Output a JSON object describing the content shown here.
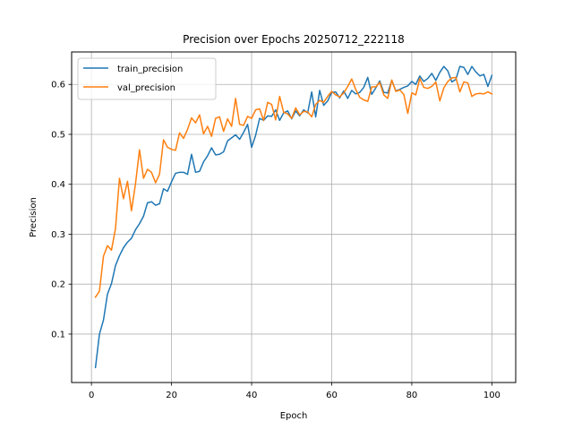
{
  "chart_data": {
    "type": "line",
    "title": "Precision over Epochs 20250712_222118",
    "xlabel": "Epoch",
    "ylabel": "Precision",
    "xlim": [
      -4.95,
      105.95
    ],
    "ylim": [
      0.003,
      0.665
    ],
    "xticks": [
      0,
      20,
      40,
      60,
      80,
      100
    ],
    "yticks": [
      0.1,
      0.2,
      0.3,
      0.4,
      0.5,
      0.6
    ],
    "grid": true,
    "legend_position": "top-left",
    "x": [
      1,
      2,
      3,
      4,
      5,
      6,
      7,
      8,
      9,
      10,
      11,
      12,
      13,
      14,
      15,
      16,
      17,
      18,
      19,
      20,
      21,
      22,
      23,
      24,
      25,
      26,
      27,
      28,
      29,
      30,
      31,
      32,
      33,
      34,
      35,
      36,
      37,
      38,
      39,
      40,
      41,
      42,
      43,
      44,
      45,
      46,
      47,
      48,
      49,
      50,
      51,
      52,
      53,
      54,
      55,
      56,
      57,
      58,
      59,
      60,
      61,
      62,
      63,
      64,
      65,
      66,
      67,
      68,
      69,
      70,
      71,
      72,
      73,
      74,
      75,
      76,
      77,
      78,
      79,
      80,
      81,
      82,
      83,
      84,
      85,
      86,
      87,
      88,
      89,
      90,
      91,
      92,
      93,
      94,
      95,
      96,
      97,
      98,
      99,
      100
    ],
    "series": [
      {
        "name": "train_precision",
        "color": "#1f77b4",
        "values": [
          0.033,
          0.1,
          0.128,
          0.18,
          0.201,
          0.237,
          0.257,
          0.273,
          0.284,
          0.292,
          0.309,
          0.321,
          0.336,
          0.363,
          0.365,
          0.358,
          0.361,
          0.391,
          0.386,
          0.405,
          0.422,
          0.424,
          0.424,
          0.42,
          0.46,
          0.424,
          0.426,
          0.445,
          0.457,
          0.473,
          0.459,
          0.46,
          0.465,
          0.487,
          0.493,
          0.499,
          0.49,
          0.504,
          0.52,
          0.474,
          0.498,
          0.532,
          0.528,
          0.537,
          0.536,
          0.549,
          0.528,
          0.543,
          0.547,
          0.531,
          0.547,
          0.537,
          0.549,
          0.543,
          0.585,
          0.535,
          0.588,
          0.558,
          0.567,
          0.584,
          0.585,
          0.573,
          0.587,
          0.572,
          0.588,
          0.581,
          0.584,
          0.594,
          0.614,
          0.58,
          0.593,
          0.607,
          0.584,
          0.583,
          0.608,
          0.587,
          0.59,
          0.594,
          0.597,
          0.606,
          0.6,
          0.617,
          0.606,
          0.612,
          0.622,
          0.608,
          0.624,
          0.636,
          0.627,
          0.605,
          0.61,
          0.636,
          0.634,
          0.62,
          0.636,
          0.625,
          0.617,
          0.62,
          0.596,
          0.618
        ]
      },
      {
        "name": "val_precision",
        "color": "#ff7f0e",
        "values": [
          0.174,
          0.186,
          0.256,
          0.277,
          0.268,
          0.311,
          0.412,
          0.371,
          0.406,
          0.347,
          0.401,
          0.469,
          0.412,
          0.43,
          0.424,
          0.403,
          0.42,
          0.489,
          0.474,
          0.47,
          0.468,
          0.503,
          0.492,
          0.51,
          0.533,
          0.523,
          0.539,
          0.501,
          0.516,
          0.496,
          0.532,
          0.535,
          0.506,
          0.531,
          0.516,
          0.572,
          0.52,
          0.518,
          0.536,
          0.532,
          0.549,
          0.551,
          0.528,
          0.564,
          0.56,
          0.529,
          0.576,
          0.544,
          0.541,
          0.532,
          0.553,
          0.539,
          0.546,
          0.545,
          0.535,
          0.56,
          0.568,
          0.564,
          0.576,
          0.586,
          0.579,
          0.575,
          0.583,
          0.596,
          0.611,
          0.59,
          0.574,
          0.569,
          0.566,
          0.595,
          0.595,
          0.604,
          0.579,
          0.572,
          0.609,
          0.586,
          0.589,
          0.58,
          0.542,
          0.583,
          0.579,
          0.612,
          0.594,
          0.592,
          0.596,
          0.605,
          0.567,
          0.593,
          0.606,
          0.613,
          0.614,
          0.585,
          0.605,
          0.603,
          0.576,
          0.581,
          0.582,
          0.581,
          0.585,
          0.581
        ]
      }
    ]
  }
}
